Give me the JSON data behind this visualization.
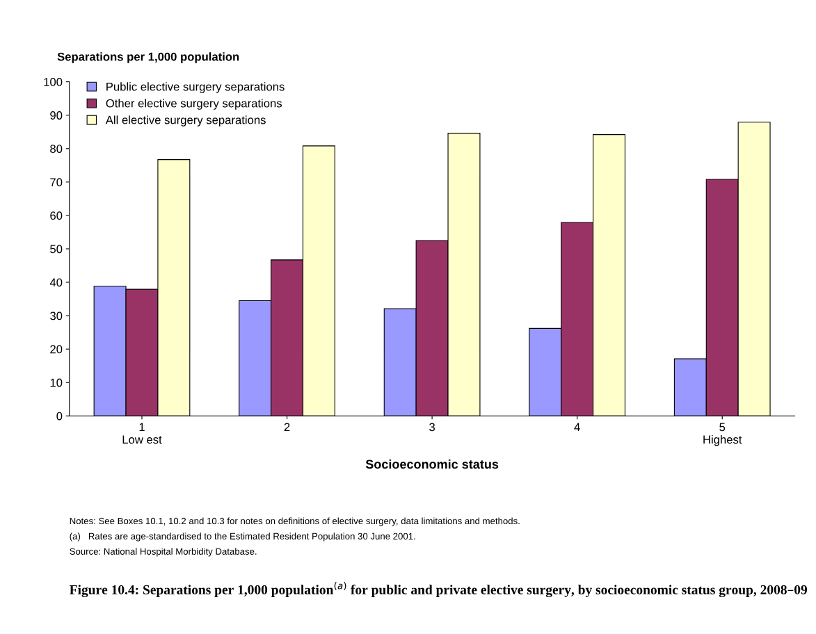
{
  "chart_data": {
    "type": "bar",
    "title": "Figure 10.4: Separations per 1,000 population$^{(a)}$ for public and private elective surgery, by socioeconomic status group, 2008–09",
    "ylabel": "Separations per 1,000 population",
    "xlabel": "Socioeconomic status",
    "categories": [
      "1\nLow est",
      "2",
      "3",
      "4",
      "5\nHighest"
    ],
    "series": [
      {
        "name": "Public elective surgery separations",
        "color": "#9999ff",
        "values": [
          38.8,
          34.5,
          32.1,
          26.2,
          17.1
        ]
      },
      {
        "name": "Other elective surgery separations",
        "color": "#993366",
        "values": [
          37.9,
          46.7,
          52.5,
          57.9,
          70.8
        ]
      },
      {
        "name": "All elective surgery separations",
        "color": "#ffffcc",
        "values": [
          76.7,
          80.8,
          84.6,
          84.2,
          87.9
        ]
      }
    ],
    "ylim": [
      0,
      100
    ],
    "yticks": [
      0,
      10,
      20,
      30,
      40,
      50,
      60,
      70,
      80,
      90,
      100
    ],
    "grid": false,
    "legend": "top left",
    "annotations": [
      "Notes: See Boxes 10.1, 10.2 and 10.3 for notes on definitions of elective surgery, data limitations and methods.",
      "(a)   Rates are age-standardised to the Estimated Resident Population 30 June 2001.",
      "Source: National Hospital Morbidity Database."
    ]
  }
}
